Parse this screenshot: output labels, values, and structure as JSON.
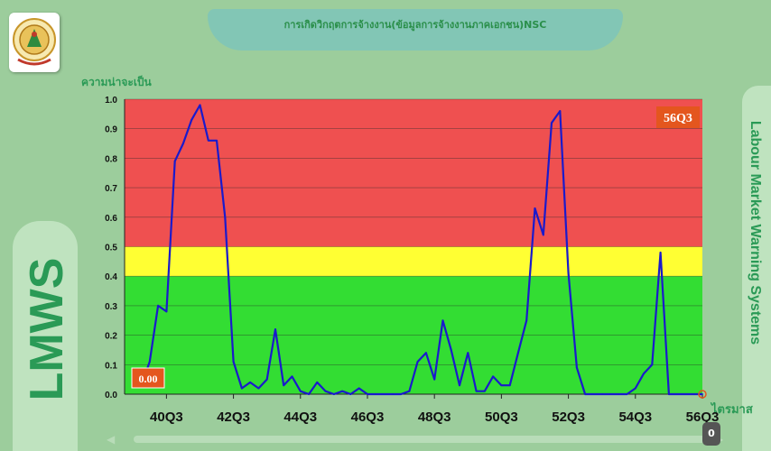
{
  "header": {
    "title": "การเกิดวิกฤตการจ้างงาน(ข้อมูลการจ้างงานภาคเอกชน)NSC"
  },
  "logo": {
    "icon": "ministry-seal-icon"
  },
  "brand": {
    "abbr": "LMWS",
    "full": "Labour Market Warning Systems"
  },
  "scrollbar": {
    "thumb_label": "0"
  },
  "colors": {
    "danger": "#ef5050",
    "warning": "#ffff33",
    "safe": "#33dd33",
    "line": "#1a1acc",
    "badge": "#e4561e",
    "accent_text": "#2a9a56"
  },
  "chart_data": {
    "type": "line",
    "ylabel": "ความน่าจะเป็น",
    "xlabel": "ไตรมาส",
    "ylim": [
      0,
      1.0
    ],
    "yticks": [
      "0.0",
      "0.1",
      "0.2",
      "0.3",
      "0.4",
      "0.5",
      "0.6",
      "0.7",
      "0.8",
      "0.9",
      "1.0"
    ],
    "xticks": [
      "40Q3",
      "42Q3",
      "44Q3",
      "46Q3",
      "48Q3",
      "50Q3",
      "52Q3",
      "54Q3",
      "56Q3"
    ],
    "xlim": [
      "39Q2",
      "56Q3"
    ],
    "bands": [
      {
        "from": 0.0,
        "to": 0.4,
        "level": "safe"
      },
      {
        "from": 0.4,
        "to": 0.5,
        "level": "warning"
      },
      {
        "from": 0.5,
        "to": 1.0,
        "level": "danger"
      }
    ],
    "start_badge": "0.00",
    "end_badge": "56Q3",
    "series": [
      {
        "x": [
          "39Q3",
          "39Q4",
          "40Q1",
          "40Q2",
          "40Q3",
          "40Q4",
          "41Q1",
          "41Q2",
          "41Q3",
          "41Q4",
          "42Q1",
          "42Q2",
          "42Q3",
          "42Q4",
          "43Q1",
          "43Q2",
          "43Q3",
          "43Q4",
          "44Q1",
          "44Q2",
          "44Q3",
          "44Q4",
          "45Q1",
          "45Q2",
          "45Q3",
          "45Q4",
          "46Q1",
          "46Q2",
          "46Q3",
          "46Q4",
          "47Q1",
          "47Q2",
          "47Q3",
          "47Q4",
          "48Q1",
          "48Q2",
          "48Q3",
          "48Q4",
          "49Q1",
          "49Q2",
          "49Q3",
          "49Q4",
          "50Q1",
          "50Q2",
          "50Q3",
          "50Q4",
          "51Q1",
          "51Q2",
          "51Q3",
          "51Q4",
          "52Q1",
          "52Q2",
          "52Q3",
          "52Q4",
          "53Q1",
          "53Q2",
          "53Q3",
          "53Q4",
          "54Q1",
          "54Q2",
          "54Q3",
          "54Q4",
          "55Q1",
          "55Q2",
          "55Q3",
          "55Q4",
          "56Q1",
          "56Q2",
          "56Q3"
        ],
        "values": [
          0.04,
          0.03,
          0.11,
          0.3,
          0.28,
          0.79,
          0.85,
          0.93,
          0.98,
          0.86,
          0.86,
          0.6,
          0.11,
          0.02,
          0.04,
          0.02,
          0.05,
          0.22,
          0.03,
          0.06,
          0.01,
          0.0,
          0.04,
          0.01,
          0.0,
          0.01,
          0.0,
          0.02,
          0.0,
          0.0,
          0.0,
          0.0,
          0.0,
          0.01,
          0.11,
          0.14,
          0.05,
          0.25,
          0.15,
          0.03,
          0.14,
          0.01,
          0.01,
          0.06,
          0.03,
          0.03,
          0.14,
          0.25,
          0.63,
          0.54,
          0.92,
          0.96,
          0.41,
          0.09,
          0.0,
          0.0,
          0.0,
          0.0,
          0.0,
          0.0,
          0.02,
          0.07,
          0.1,
          0.48,
          0.0,
          0.0,
          0.0,
          0.0,
          0.0
        ]
      }
    ]
  }
}
